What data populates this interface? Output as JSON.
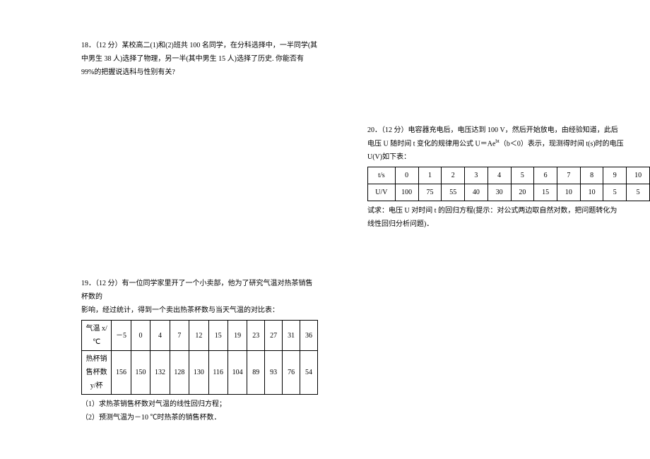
{
  "q18": {
    "text": "18．（12 分）某校高二(1)和(2)班共 100 名同学，在分科选择中，一半同学(其中男生 38 人)选择了物理，另一半(其中男生 15 人)选择了历史. 你能否有 99%的把握说选科与性别有关?"
  },
  "q19": {
    "intro1": "19．（12 分）有一位同学家里开了一个小卖部，他为了研究气温对热茶销售杯数的",
    "intro2": "影响，经过统计，得到一个卖出热茶杯数与当天气温的对比表：",
    "row1_label": "气温 x/℃",
    "row1": [
      "－5",
      "0",
      "4",
      "7",
      "12",
      "15",
      "19",
      "23",
      "27",
      "31",
      "36"
    ],
    "row2_label": "热杯销售杯数 y/杯",
    "row2": [
      "156",
      "150",
      "132",
      "128",
      "130",
      "116",
      "104",
      "89",
      "93",
      "76",
      "54"
    ],
    "sub1": "（1）求热茶销售杯数对气温的线性回归方程；",
    "sub2": "（2）预测气温为－10 ℃时热茶的销售杯数．"
  },
  "q20": {
    "intro1": "20．（12 分）电容器充电后，电压达到 100 V，然后开始放电，由经验知道，此后",
    "intro2_a": "电压 U 随时间 t 变化的规律用公式 U＝Ae",
    "intro2_b": "（b＜0）表示，现测得时间 t(s)时的电压",
    "intro3": "U(V)如下表：",
    "row1_label": "t/s",
    "row1": [
      "0",
      "1",
      "2",
      "3",
      "4",
      "5",
      "6",
      "7",
      "8",
      "9",
      "10"
    ],
    "row2_label": "U/V",
    "row2": [
      "100",
      "75",
      "55",
      "40",
      "30",
      "20",
      "15",
      "10",
      "10",
      "5",
      "5"
    ],
    "tail1": "试求：电压 U 对时间 t 的回归方程(提示：对公式两边取自然对数，把问题转化为",
    "tail2": "线性回归分析问题)．"
  },
  "style": {
    "font_size_pt": 10,
    "text_color": "#000000",
    "bg_color": "#ffffff",
    "border_color": "#000000",
    "line_height": 1.9
  }
}
